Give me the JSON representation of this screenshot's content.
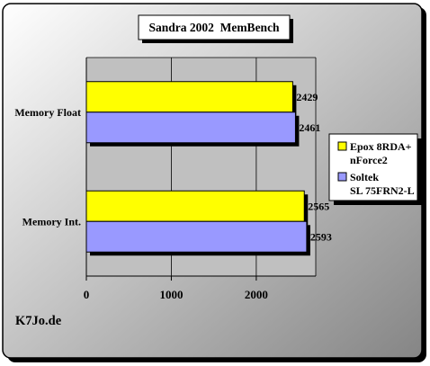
{
  "chart_data": {
    "type": "bar",
    "orientation": "horizontal",
    "title": "Sandra 2002  MemBench",
    "categories": [
      "Memory Float",
      "Memory Int."
    ],
    "series": [
      {
        "name": "Epox 8RDA+ nForce2",
        "legend_lines": [
          "Epox 8RDA+",
          "nForce2"
        ],
        "color": "#ffff00",
        "values": [
          2429,
          2565
        ]
      },
      {
        "name": "Soltek SL 75FRN2-L",
        "legend_lines": [
          "Soltek",
          "SL 75FRN2-L"
        ],
        "color": "#9999ff",
        "values": [
          2461,
          2593
        ]
      }
    ],
    "x_ticks": [
      0,
      1000,
      2000
    ],
    "xlim": [
      0,
      2700
    ],
    "grid": "vertical",
    "legend_position": "right",
    "watermark": "K7Jo.de",
    "background": {
      "outer_from": "#ffffff",
      "outer_to": "#858585",
      "plot": "#c0c0c0"
    }
  }
}
